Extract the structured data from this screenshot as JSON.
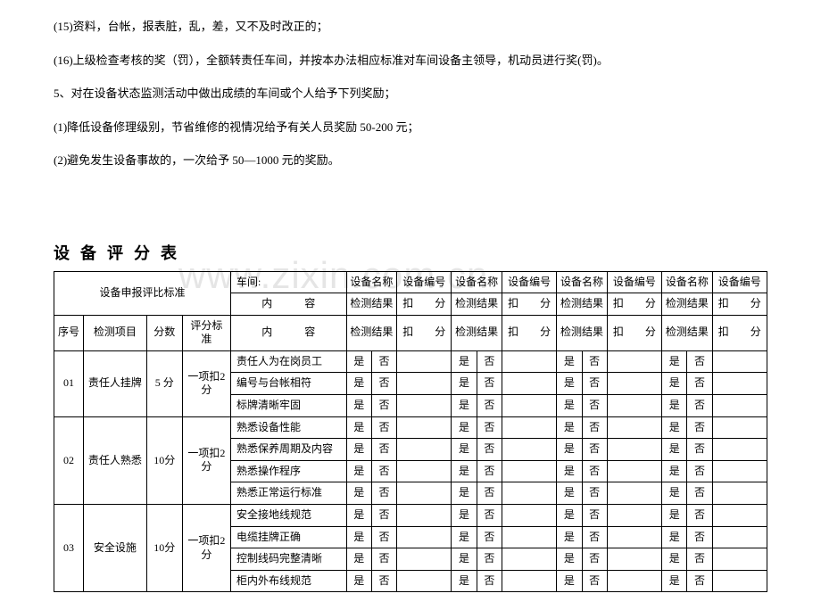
{
  "paragraphs": {
    "p1": "(15)资料，台帐，报表脏，乱，差，又不及时改正的；",
    "p2": "(16)上级检查考核的奖（罚），全额转责任车间，并按本办法相应标准对车间设备主领导，机动员进行奖(罚)。",
    "p3": "5、对在设备状态监测活动中做出成绩的车间或个人给予下列奖励；",
    "p4": "(1)降低设备修理级别，节省维修的视情况给予有关人员奖励 50-200 元；",
    "p5": "(2)避免发生设备事故的，一次给予 50—1000 元的奖励。"
  },
  "watermark": "www.zixin.com.cn",
  "title": "设备评分表",
  "header": {
    "std_title": "设备申报评比标准",
    "workshop": "车间:",
    "dev_name": "设备名称",
    "dev_no": "设备编号"
  },
  "cols": {
    "seq": "序号",
    "item": "检测项目",
    "score": "分数",
    "std": "评分标准",
    "content": "内容",
    "content_spaced": "内　　　容",
    "result": "检测结果",
    "deduct": "扣　　分"
  },
  "yn": {
    "yes": "是",
    "no": "否"
  },
  "groups": [
    {
      "seq": "01",
      "item": "责任人挂牌",
      "score": "5 分",
      "std": "一项扣2 分",
      "rows": [
        "责任人为在岗员工",
        "编号与台帐相符",
        "标牌清晰牢固"
      ]
    },
    {
      "seq": "02",
      "item": "责任人熟悉",
      "score": "10分",
      "std": "一项扣2 分",
      "rows": [
        "熟悉设备性能",
        "熟悉保养周期及内容",
        "熟悉操作程序",
        "熟悉正常运行标准"
      ]
    },
    {
      "seq": "03",
      "item": "安全设施",
      "score": "10分",
      "std": "一项扣2 分",
      "rows": [
        "安全接地线规范",
        "电缆挂牌正确",
        "控制线码完整清晰",
        "柜内外布线规范"
      ]
    }
  ],
  "style": {
    "bg": "#ffffff",
    "text": "#000000",
    "border": "#000000",
    "watermark_color": "rgba(180,180,180,0.35)",
    "body_font_size": 13,
    "table_font_size": 12,
    "title_font_size": 18,
    "watermark_font_size": 42
  }
}
